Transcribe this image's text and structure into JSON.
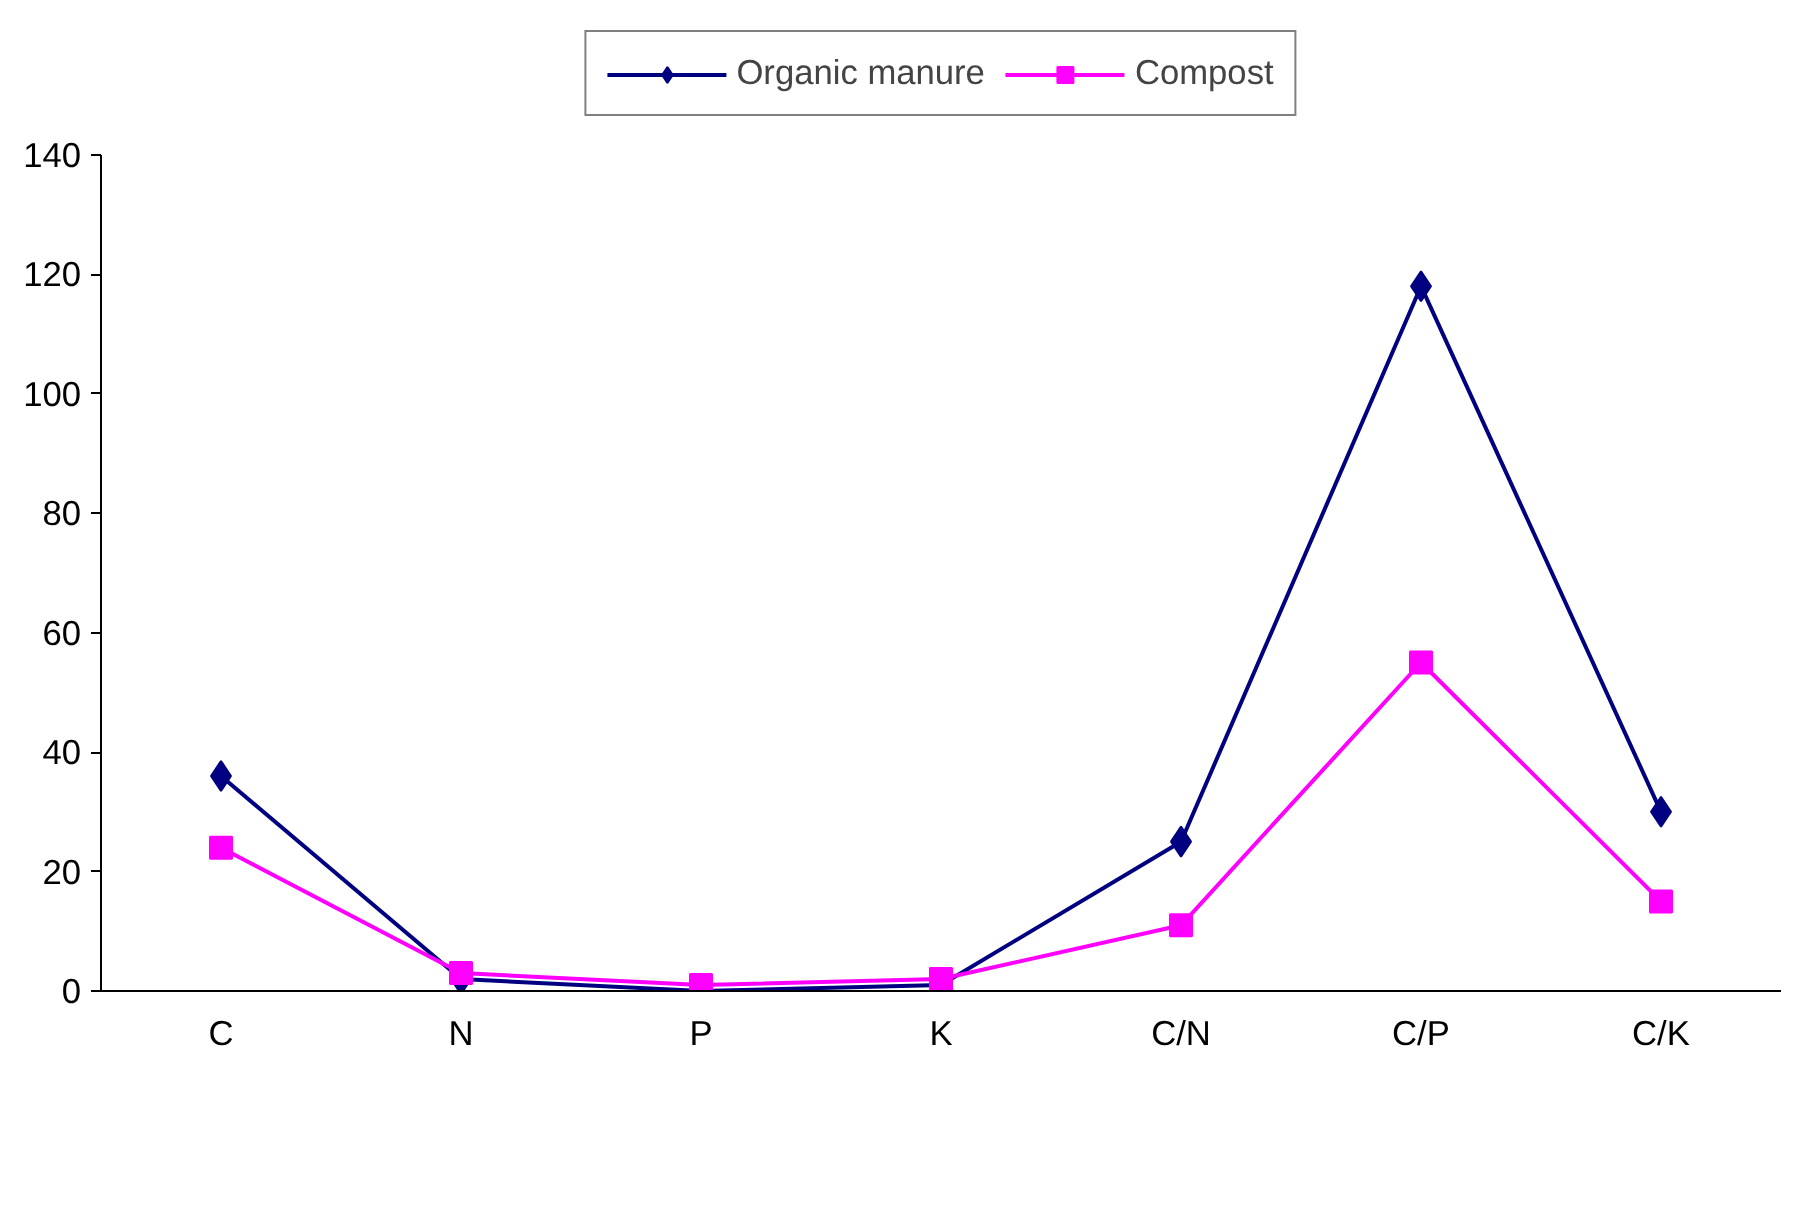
{
  "chart_data": {
    "type": "line",
    "categories": [
      "C",
      "N",
      "P",
      "K",
      "C/N",
      "C/P",
      "C/K"
    ],
    "series": [
      {
        "name": "Organic manure",
        "color": "#000080",
        "marker": "diamond",
        "values": [
          36,
          2,
          0,
          1,
          25,
          118,
          30
        ]
      },
      {
        "name": "Compost",
        "color": "#ff00ff",
        "marker": "square",
        "values": [
          24,
          3,
          1,
          2,
          11,
          55,
          15
        ]
      }
    ],
    "ylim": [
      0,
      140
    ],
    "yticks": [
      0,
      20,
      40,
      60,
      80,
      100,
      120,
      140
    ],
    "grid": false,
    "legend": "top",
    "line_style": "solid"
  }
}
